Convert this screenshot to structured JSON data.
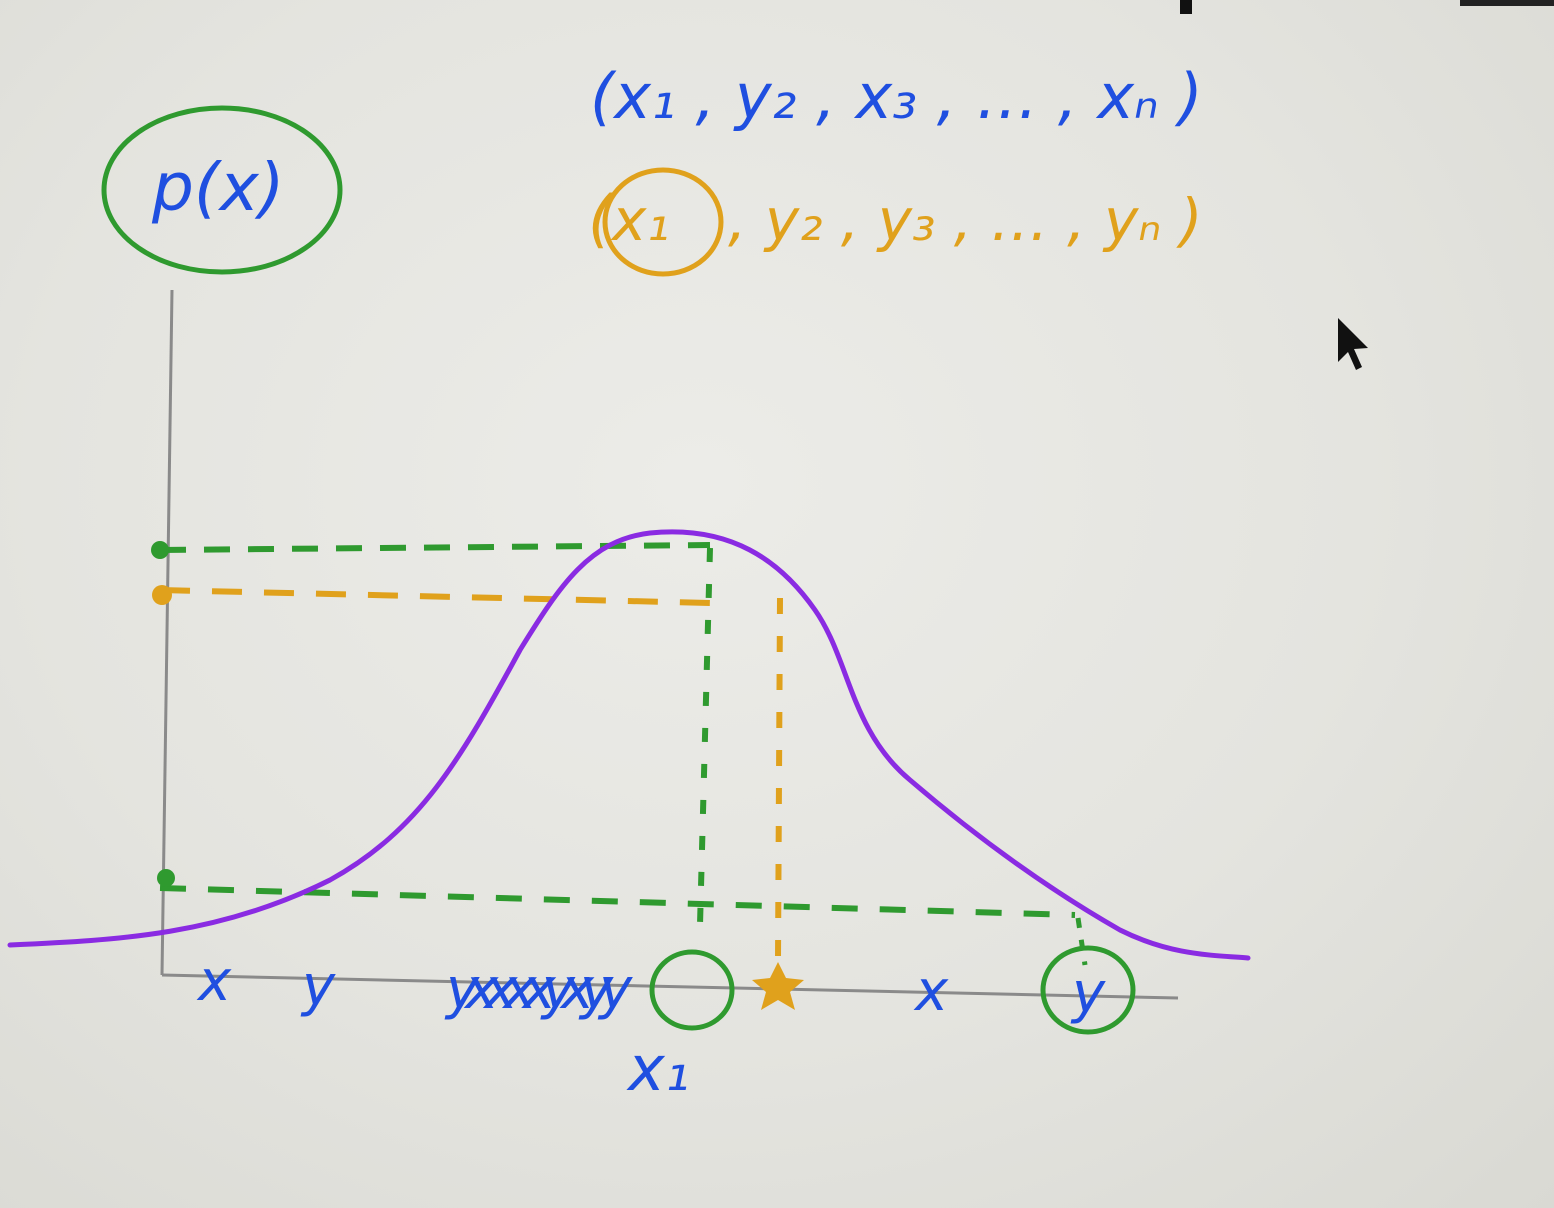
{
  "sequences": {
    "blue": "(x₁ , y₂ , x₃ , … , xₙ )",
    "orange_first": "x₁",
    "orange_rest": ", y₂ , y₃ , … , yₙ )"
  },
  "axis": {
    "ylabel": "p(x)"
  },
  "samples": {
    "marks": [
      "x",
      "y",
      "yxxxxyxyy",
      "x",
      "y"
    ],
    "label": "x₁"
  },
  "colors": {
    "blue": "#1f4fe0",
    "orange": "#e0a11c",
    "green": "#2f9a2f",
    "curve": "#8a2be2",
    "axes": "#8a8a8a"
  },
  "icons": [
    "mouse-pointer-icon"
  ]
}
